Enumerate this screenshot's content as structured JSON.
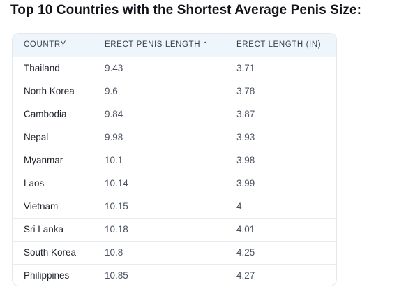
{
  "page": {
    "title": "Top 10 Countries with the Shortest Average Penis Size:"
  },
  "table": {
    "headers": {
      "country": "COUNTRY",
      "erect_length": "ERECT PENIS LENGTH",
      "erect_length_in": "ERECT LENGTH (IN)"
    },
    "sort_icon": "chevron-up-icon",
    "rows": [
      {
        "country": "Thailand",
        "length": "9.43",
        "length_in": "3.71"
      },
      {
        "country": "North Korea",
        "length": "9.6",
        "length_in": "3.78"
      },
      {
        "country": "Cambodia",
        "length": "9.84",
        "length_in": "3.87"
      },
      {
        "country": "Nepal",
        "length": "9.98",
        "length_in": "3.93"
      },
      {
        "country": "Myanmar",
        "length": "10.1",
        "length_in": "3.98"
      },
      {
        "country": "Laos",
        "length": "10.14",
        "length_in": "3.99"
      },
      {
        "country": "Vietnam",
        "length": "10.15",
        "length_in": "4"
      },
      {
        "country": "Sri Lanka",
        "length": "10.18",
        "length_in": "4.01"
      },
      {
        "country": "South Korea",
        "length": "10.8",
        "length_in": "4.25"
      },
      {
        "country": "Philippines",
        "length": "10.85",
        "length_in": "4.27"
      }
    ]
  }
}
